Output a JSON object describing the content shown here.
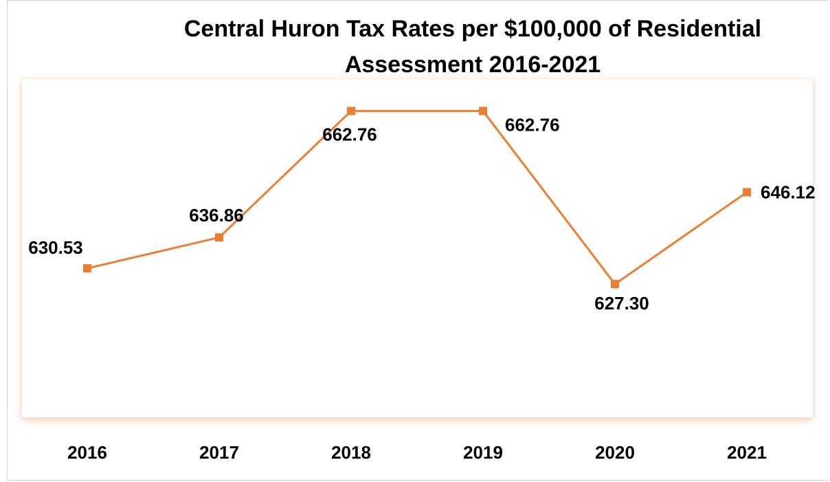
{
  "chart_data": {
    "type": "line",
    "title": "Central Huron Tax Rates per $100,000 of Residential Assessment 2016-2021",
    "categories": [
      "2016",
      "2017",
      "2018",
      "2019",
      "2020",
      "2021"
    ],
    "series": [
      {
        "name": "Tax Rate",
        "color": "#ed7d31",
        "values": [
          630.53,
          636.86,
          662.76,
          662.76,
          627.3,
          646.12
        ],
        "value_labels": [
          "630.53",
          "636.86",
          "662.76",
          "662.76",
          "627.30",
          "646.12"
        ]
      }
    ],
    "ylim": [
      600,
      670
    ]
  }
}
